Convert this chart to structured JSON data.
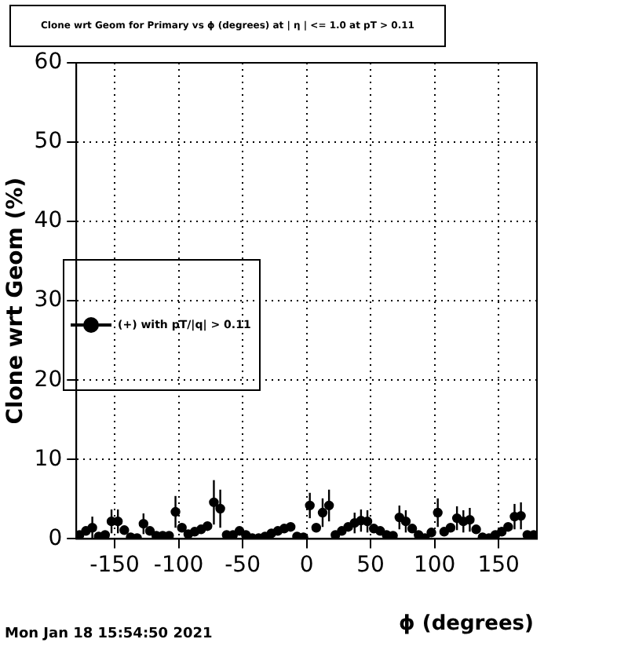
{
  "chart_data": {
    "type": "scatter",
    "title": "Clone wrt Geom for Primary vs ϕ (degrees) at | η | <= 1.0 at pT > 0.11",
    "xlabel": "ϕ (degrees)",
    "ylabel": "Clone wrt Geom (%)",
    "annotations": [
      "Mon Jan 18 15:54:50 2021"
    ],
    "x": [
      -177.5,
      -172.5,
      -167.5,
      -162.5,
      -157.5,
      -152.5,
      -147.5,
      -142.5,
      -137.5,
      -132.5,
      -127.5,
      -122.5,
      -117.5,
      -112.5,
      -107.5,
      -102.5,
      -97.5,
      -92.5,
      -87.5,
      -82.5,
      -77.5,
      -72.5,
      -67.5,
      -62.5,
      -57.5,
      -52.5,
      -47.5,
      -42.5,
      -37.5,
      -32.5,
      -27.5,
      -22.5,
      -17.5,
      -12.5,
      -7.5,
      -2.5,
      2.5,
      7.5,
      12.5,
      17.5,
      22.5,
      27.5,
      32.5,
      37.5,
      42.5,
      47.5,
      52.5,
      57.5,
      62.5,
      67.5,
      72.5,
      77.5,
      82.5,
      87.5,
      92.5,
      97.5,
      102.5,
      107.5,
      112.5,
      117.5,
      122.5,
      127.5,
      132.5,
      137.5,
      142.5,
      147.5,
      152.5,
      157.5,
      162.5,
      167.5,
      172.5,
      177.5
    ],
    "series": [
      {
        "name": "(+) with pT/|q| > 0.11",
        "color": "#000000",
        "values": [
          0.5,
          1.0,
          1.4,
          0.3,
          0.5,
          2.2,
          2.2,
          1.1,
          0.2,
          0.1,
          1.9,
          1.0,
          0.4,
          0.4,
          0.4,
          3.4,
          1.4,
          0.6,
          0.9,
          1.2,
          1.6,
          4.6,
          3.8,
          0.5,
          0.5,
          1.0,
          0.5,
          0.1,
          0.1,
          0.3,
          0.7,
          1.0,
          1.3,
          1.5,
          0.3,
          0.2,
          4.2,
          1.4,
          3.3,
          4.2,
          0.5,
          1.0,
          1.5,
          2.0,
          2.3,
          2.2,
          1.3,
          1.0,
          0.5,
          0.4,
          2.7,
          2.2,
          1.3,
          0.5,
          0.1,
          0.8,
          3.3,
          0.9,
          1.4,
          2.6,
          2.2,
          2.4,
          1.2,
          0.2,
          0.1,
          0.5,
          0.9,
          1.5,
          2.8,
          2.9,
          0.5,
          0.5
        ],
        "errors": [
          null,
          null,
          1.4,
          null,
          null,
          1.5,
          1.5,
          null,
          null,
          null,
          1.3,
          null,
          null,
          null,
          null,
          2,
          null,
          null,
          null,
          null,
          null,
          2.8,
          2.4,
          null,
          null,
          null,
          null,
          null,
          null,
          null,
          null,
          null,
          null,
          null,
          null,
          null,
          1.6,
          null,
          1.8,
          2,
          null,
          null,
          null,
          1.3,
          1.4,
          1.4,
          null,
          null,
          null,
          null,
          1.5,
          1.4,
          null,
          null,
          null,
          null,
          1.8,
          null,
          null,
          1.5,
          1.4,
          1.5,
          null,
          null,
          null,
          null,
          null,
          null,
          1.6,
          1.7,
          null,
          null
        ]
      }
    ],
    "xlim": [
      -180,
      180
    ],
    "xticks": [
      -150,
      -100,
      -50,
      0,
      50,
      100,
      150
    ],
    "ylim": [
      0,
      60
    ],
    "yticks": [
      0,
      10,
      20,
      30,
      40,
      50,
      60
    ],
    "grid": true,
    "legend": "left",
    "marker": "circle"
  }
}
